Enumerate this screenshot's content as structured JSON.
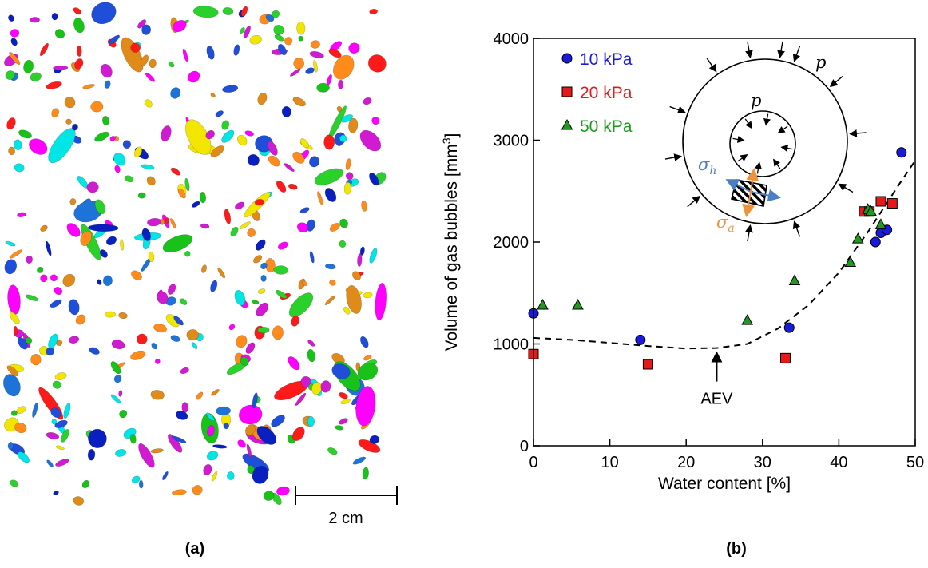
{
  "panel_a": {
    "label": "(a)",
    "scale_bar_label": "2 cm",
    "bubble_colors": [
      "#ff1a1a",
      "#1f4fd8",
      "#00e5e5",
      "#ff00ff",
      "#f2e600",
      "#ff8c1a",
      "#19c219",
      "#1e73d8",
      "#0a1fbf",
      "#e08a1a",
      "#2bd12b",
      "#d11ad1"
    ]
  },
  "panel_b": {
    "label": "(b)"
  },
  "chart_data": {
    "type": "scatter",
    "xlabel": "Water content [%]",
    "ylabel": "Volume of gas bubbles [mm³]",
    "xlim": [
      0,
      50
    ],
    "ylim": [
      0,
      4000
    ],
    "xticks": [
      0,
      10,
      20,
      30,
      40,
      50
    ],
    "yticks": [
      0,
      1000,
      2000,
      3000,
      4000
    ],
    "grid": false,
    "legend_position": "top-left",
    "series": [
      {
        "name": "10 kPa",
        "marker": "circle",
        "color": "#1a1adc",
        "x": [
          0,
          14,
          33.5,
          44.8,
          45.5,
          46.3,
          48.2
        ],
        "y": [
          1300,
          1040,
          1160,
          2000,
          2090,
          2120,
          2880
        ]
      },
      {
        "name": "20 kPa",
        "marker": "square",
        "color": "#e61919",
        "x": [
          0,
          15,
          33,
          43.3,
          44,
          45.5,
          47
        ],
        "y": [
          900,
          800,
          860,
          2300,
          2300,
          2400,
          2380
        ]
      },
      {
        "name": "50 kPa",
        "marker": "triangle",
        "color": "#1f9a1f",
        "x": [
          1.2,
          5.8,
          28,
          34.2,
          41.5,
          42.5,
          43.8,
          44.2,
          45.5
        ],
        "y": [
          1380,
          1380,
          1230,
          1620,
          1800,
          2030,
          2320,
          2300,
          2170
        ]
      }
    ],
    "trend_line": {
      "style": "dashed",
      "x": [
        0,
        5,
        10,
        15,
        20,
        24,
        28,
        32,
        36,
        40,
        44,
        48,
        50
      ],
      "y": [
        1060,
        1040,
        1010,
        980,
        955,
        960,
        1000,
        1150,
        1380,
        1700,
        2120,
        2580,
        2800
      ]
    },
    "annotation": {
      "text": "AEV",
      "x": 24,
      "y": 960
    },
    "inset": {
      "labels": {
        "outer": "p",
        "inner": "p",
        "sigma_h": "σ",
        "sigma_h_sub": "h",
        "sigma_a": "σ",
        "sigma_a_sub": "a"
      }
    }
  }
}
